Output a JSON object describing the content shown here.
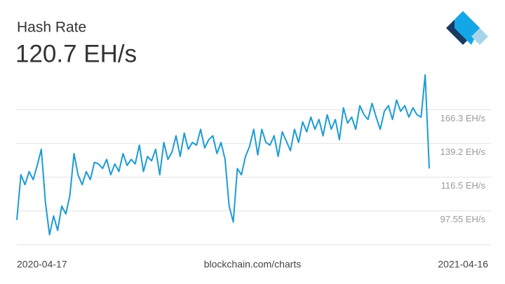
{
  "chart_data": {
    "type": "line",
    "title": "Hash Rate",
    "subtitle": "120.7 EH/s",
    "source": "blockchain.com/charts",
    "xticks": [
      "2020-04-17",
      "2021-04-16"
    ],
    "color": "#1c9bd5",
    "log_scale": true,
    "grid": true,
    "ylim": [
      81.6,
      199
    ],
    "yticks": [
      {
        "value": 97.55,
        "label": "97.55 EH/s"
      },
      {
        "value": 116.5,
        "label": "116.5 EH/s"
      },
      {
        "value": 139.2,
        "label": "139.2 EH/s"
      },
      {
        "value": 166.3,
        "label": "166.3 EH/s"
      }
    ],
    "values": [
      93,
      118,
      112,
      120,
      115,
      124,
      135,
      102,
      86,
      95,
      88,
      100,
      96,
      106,
      132,
      118,
      112,
      120,
      115,
      126,
      125,
      122,
      128,
      118,
      125,
      120,
      132,
      124,
      128,
      125,
      138,
      120,
      130,
      127,
      135,
      118,
      140,
      128,
      133,
      145,
      130,
      147,
      135,
      140,
      138,
      150,
      136,
      142,
      145,
      132,
      140,
      128,
      100,
      92,
      122,
      118,
      130,
      137,
      150,
      131,
      150,
      140,
      138,
      145,
      130,
      148,
      141,
      134,
      150,
      140,
      156,
      148,
      160,
      150,
      158,
      145,
      162,
      150,
      158,
      142,
      168,
      155,
      160,
      150,
      170,
      162,
      158,
      172,
      160,
      150,
      165,
      170,
      158,
      175,
      165,
      170,
      160,
      168,
      162,
      160,
      200,
      122
    ]
  }
}
